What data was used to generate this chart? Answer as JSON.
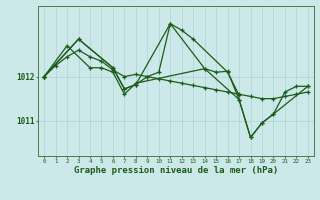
{
  "bg_color": "#cce8e8",
  "grid_color": "#aad4d4",
  "line_color": "#1a5c1a",
  "xlabel": "Graphe pression niveau de la mer (hPa)",
  "xlabel_fontsize": 6.5,
  "ytick_labels": [
    "1011",
    "1012"
  ],
  "ytick_values": [
    1011,
    1012
  ],
  "ylim": [
    1010.2,
    1013.6
  ],
  "xlim": [
    -0.5,
    23.5
  ],
  "xtick_values": [
    0,
    1,
    2,
    3,
    4,
    5,
    6,
    7,
    8,
    9,
    10,
    11,
    12,
    13,
    14,
    15,
    16,
    17,
    18,
    19,
    20,
    21,
    22,
    23
  ],
  "s1_x": [
    0,
    1,
    2,
    3,
    4,
    5,
    6,
    7,
    8,
    9,
    10,
    11,
    12,
    13,
    14,
    15,
    16,
    17,
    18,
    19,
    20,
    21,
    22,
    23
  ],
  "s1_y": [
    1012.0,
    1012.25,
    1012.45,
    1012.6,
    1012.45,
    1012.35,
    1012.15,
    1012.0,
    1012.05,
    1012.0,
    1011.95,
    1011.9,
    1011.85,
    1011.8,
    1011.75,
    1011.7,
    1011.65,
    1011.6,
    1011.55,
    1011.5,
    1011.5,
    1011.55,
    1011.6,
    1011.65
  ],
  "s2_x": [
    0,
    3,
    6,
    7,
    8,
    9,
    10,
    11,
    12,
    13,
    16,
    17
  ],
  "s2_y": [
    1012.0,
    1012.85,
    1012.2,
    1011.72,
    1011.82,
    1012.0,
    1012.1,
    1013.2,
    1013.05,
    1012.85,
    1012.1,
    1011.58
  ],
  "s3_x": [
    0,
    2,
    4,
    5,
    6,
    7,
    8,
    14,
    15,
    16,
    17,
    18,
    19,
    20,
    21,
    22,
    23
  ],
  "s3_y": [
    1012.0,
    1012.7,
    1012.2,
    1012.2,
    1012.1,
    1011.6,
    1011.85,
    1012.18,
    1012.1,
    1012.12,
    1011.48,
    1010.62,
    1010.95,
    1011.15,
    1011.65,
    1011.78,
    1011.78
  ],
  "s4_x": [
    0,
    3,
    6,
    7,
    8,
    11,
    14,
    17,
    18,
    19,
    20,
    23
  ],
  "s4_y": [
    1012.0,
    1012.85,
    1012.2,
    1011.72,
    1011.82,
    1013.2,
    1012.18,
    1011.48,
    1010.62,
    1010.95,
    1011.15,
    1011.78
  ]
}
